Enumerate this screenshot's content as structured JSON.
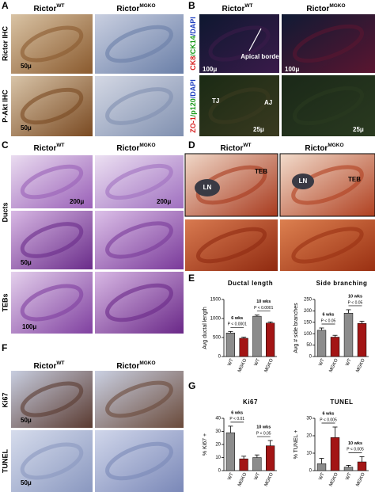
{
  "panels": {
    "A": {
      "label": "A",
      "columns": [
        {
          "base": "Rictor",
          "sup": "WT"
        },
        {
          "base": "Rictor",
          "sup": "MGKO"
        }
      ],
      "rows": [
        "Rictor IHC",
        "P-Akt IHC"
      ],
      "scale_bars": [
        "50μ",
        "50μ"
      ]
    },
    "B": {
      "label": "B",
      "columns": [
        {
          "base": "Rictor",
          "sup": "WT"
        },
        {
          "base": "Rictor",
          "sup": "MGKO"
        }
      ],
      "rows": [
        [
          {
            "text": "CK8",
            "color": "#d81e1e"
          },
          {
            "text": "/CK14",
            "color": "#1a9a1a"
          },
          {
            "text": "/DAPI",
            "color": "#1f3fbf"
          }
        ],
        [
          {
            "text": "ZO-1",
            "color": "#d81e1e"
          },
          {
            "text": "/p120",
            "color": "#1a9a1a"
          },
          {
            "text": "/DAPI",
            "color": "#1f3fbf"
          }
        ]
      ],
      "annotations": [
        "Apical border",
        "TJ",
        "AJ"
      ],
      "scale_bars": [
        "100μ",
        "100μ",
        "25μ",
        "25μ"
      ]
    },
    "C": {
      "label": "C",
      "columns": [
        {
          "base": "Rictor",
          "sup": "WT"
        },
        {
          "base": "Rictor",
          "sup": "MGKO"
        }
      ],
      "rows": [
        "Ducts",
        "TEBs"
      ],
      "scale_bars": [
        "200μ",
        "200μ",
        "50μ",
        "100μ"
      ]
    },
    "D": {
      "label": "D",
      "columns": [
        {
          "base": "Rictor",
          "sup": "WT"
        },
        {
          "base": "Rictor",
          "sup": "MGKO"
        }
      ],
      "annotations": [
        "LN",
        "TEB",
        "LN",
        "TEB"
      ]
    },
    "E": {
      "label": "E"
    },
    "F": {
      "label": "F",
      "columns": [
        {
          "base": "Rictor",
          "sup": "WT"
        },
        {
          "base": "Rictor",
          "sup": "MGKO"
        }
      ],
      "rows": [
        "Ki67",
        "TUNEL"
      ],
      "scale_bars": [
        "50μ",
        "50μ"
      ]
    },
    "G": {
      "label": "G"
    }
  },
  "chart_data": [
    {
      "type": "bar",
      "title": "Ductal length",
      "ylabel": "Avg ductal length",
      "categories": [
        "WT",
        "MGKO",
        "WT",
        "MGKO"
      ],
      "values": [
        620,
        480,
        1060,
        880
      ],
      "errors": [
        40,
        30,
        30,
        30
      ],
      "colors": [
        "#8c8c8c",
        "#a31515",
        "#8c8c8c",
        "#a31515"
      ],
      "ylim": [
        0,
        1500
      ],
      "yticks": [
        0,
        500,
        1000,
        1500
      ],
      "comparisons": [
        {
          "group": "6 wks",
          "p": "P < 0.0001"
        },
        {
          "group": "10 wks",
          "p": "P < 0.0001"
        }
      ]
    },
    {
      "type": "bar",
      "title": "Side branching",
      "ylabel": "Avg # side branches",
      "categories": [
        "WT",
        "MGKO",
        "WT",
        "MGKO"
      ],
      "values": [
        115,
        85,
        190,
        145
      ],
      "errors": [
        10,
        8,
        15,
        10
      ],
      "colors": [
        "#8c8c8c",
        "#a31515",
        "#8c8c8c",
        "#a31515"
      ],
      "ylim": [
        0,
        250
      ],
      "yticks": [
        0,
        50,
        100,
        150,
        200,
        250
      ],
      "comparisons": [
        {
          "group": "6 wks",
          "p": "P < 0.05"
        },
        {
          "group": "10 wks",
          "p": "P < 0.05"
        }
      ]
    },
    {
      "type": "bar",
      "title": "Ki67",
      "ylabel": "% Ki67 +",
      "categories": [
        "WT",
        "MGKO",
        "WT",
        "MGKO"
      ],
      "values": [
        29,
        9,
        10,
        19
      ],
      "errors": [
        5,
        2,
        2,
        4
      ],
      "colors": [
        "#8c8c8c",
        "#a31515",
        "#8c8c8c",
        "#a31515"
      ],
      "ylim": [
        0,
        40
      ],
      "yticks": [
        0,
        10,
        20,
        30,
        40
      ],
      "comparisons": [
        {
          "group": "6 wks",
          "p": "P < 0.01"
        },
        {
          "group": "10 wks",
          "p": "P < 0.05"
        }
      ]
    },
    {
      "type": "bar",
      "title": "TUNEL",
      "ylabel": "% TUNEL +",
      "categories": [
        "WT",
        "MGKO",
        "WT",
        "MGKO"
      ],
      "values": [
        4,
        19,
        2,
        5
      ],
      "errors": [
        3,
        6,
        1,
        3
      ],
      "colors": [
        "#8c8c8c",
        "#a31515",
        "#8c8c8c",
        "#a31515"
      ],
      "ylim": [
        0,
        30
      ],
      "yticks": [
        0,
        10,
        20,
        30
      ],
      "comparisons": [
        {
          "group": "6 wks",
          "p": "P < 0.005"
        },
        {
          "group": "10 wks",
          "p": "P < 0.005"
        }
      ]
    }
  ]
}
